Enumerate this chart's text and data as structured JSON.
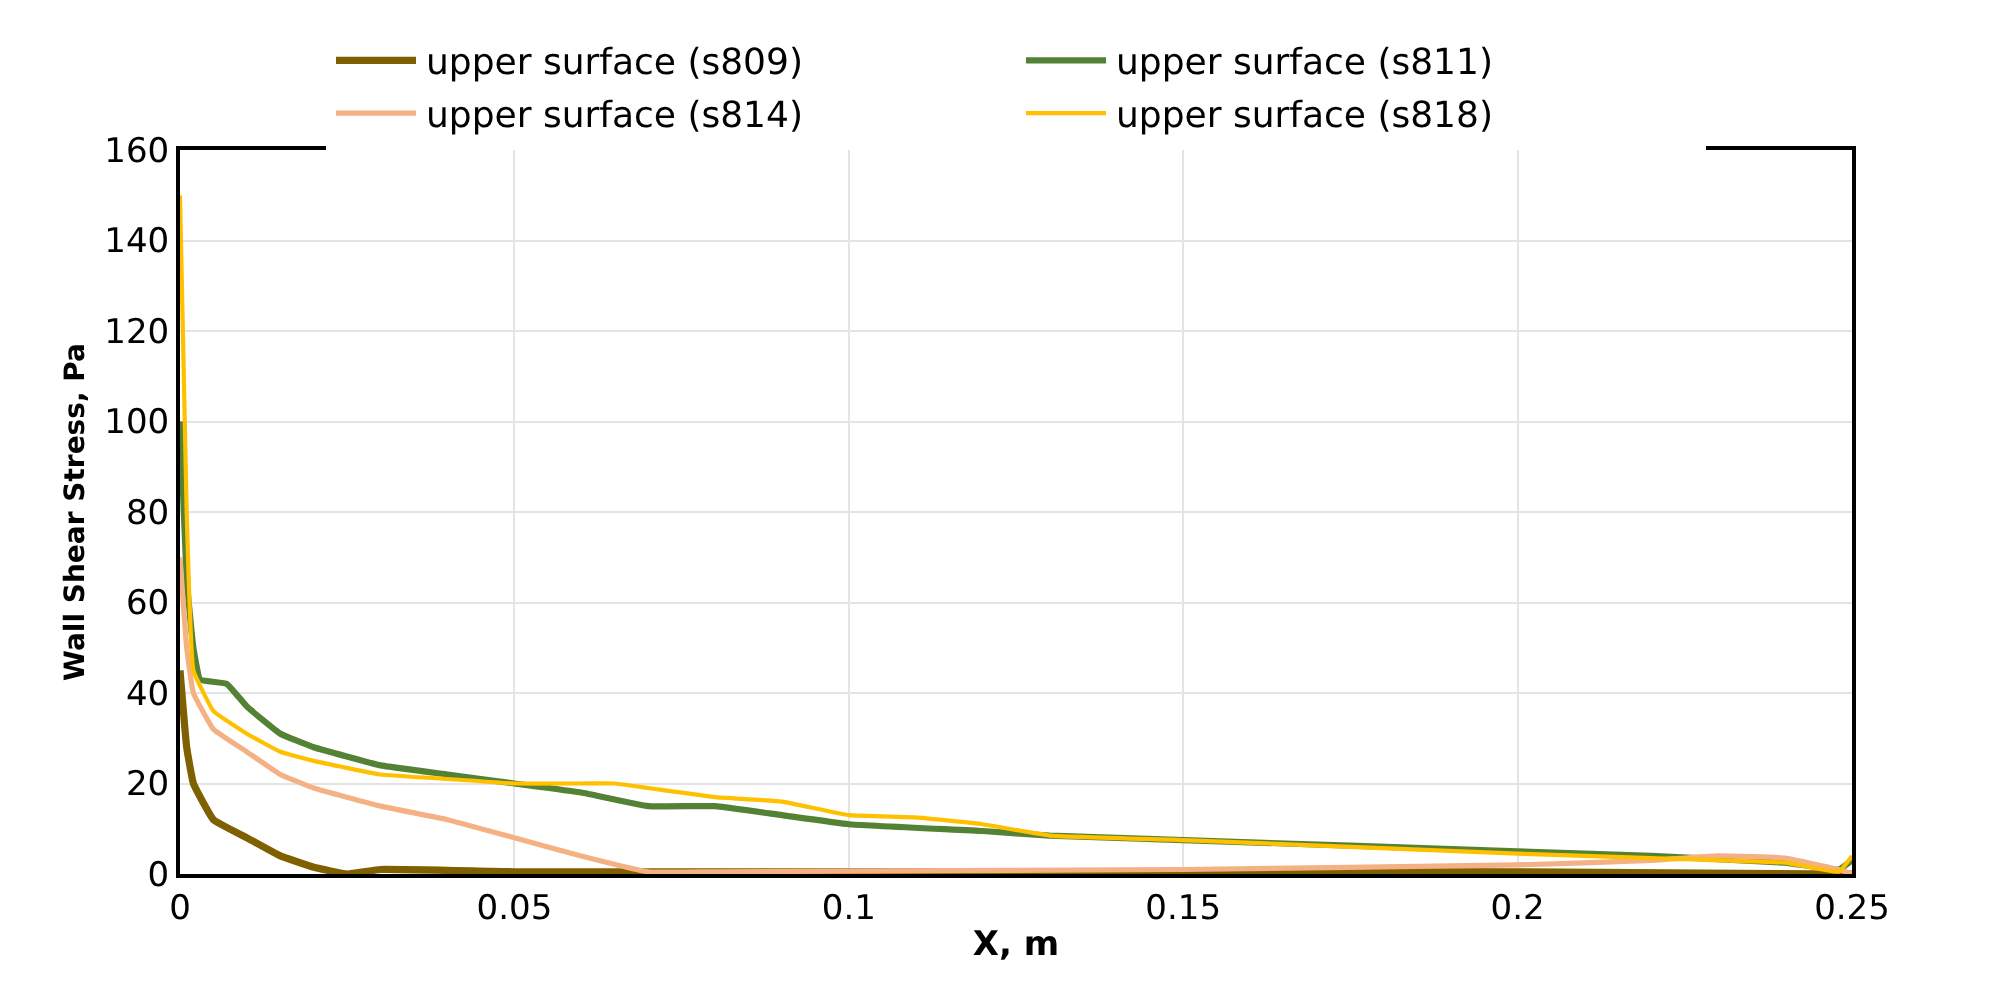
{
  "chart_data": {
    "type": "line",
    "xlabel": "X, m",
    "ylabel": "Wall Shear Stress, Pa",
    "xlim": [
      0,
      0.25
    ],
    "xticks": [
      0,
      0.05,
      0.1,
      0.15,
      0.2,
      0.25
    ],
    "ylim": [
      0,
      160
    ],
    "yticks": [
      0,
      20,
      40,
      60,
      80,
      100,
      120,
      140,
      160
    ],
    "grid": true,
    "legend": "top",
    "marker": "none",
    "line_style": "solid",
    "series": [
      {
        "name": "upper surface (s809)",
        "color": "#7f6000",
        "x": [
          0,
          0.001,
          0.002,
          0.005,
          0.01,
          0.015,
          0.02,
          0.025,
          0.03,
          0.05,
          0.1,
          0.15,
          0.2,
          0.25
        ],
        "values": [
          45,
          28,
          20,
          12,
          8,
          4,
          1.5,
          0,
          1,
          0.5,
          0.5,
          0.5,
          0.5,
          0
        ]
      },
      {
        "name": "upper surface (s811)",
        "color": "#548235",
        "x": [
          0,
          0.001,
          0.002,
          0.003,
          0.007,
          0.01,
          0.015,
          0.02,
          0.03,
          0.04,
          0.05,
          0.06,
          0.07,
          0.08,
          0.09,
          0.1,
          0.12,
          0.13,
          0.15,
          0.2,
          0.22,
          0.24,
          0.248,
          0.25
        ],
        "values": [
          100,
          65,
          50,
          43,
          42,
          37,
          31,
          28,
          24,
          22,
          20,
          18,
          15,
          15,
          13,
          11,
          9.5,
          8.5,
          7.5,
          5,
          4,
          2.5,
          1,
          3
        ]
      },
      {
        "name": "upper surface (s814)",
        "color": "#f4b183",
        "x": [
          0,
          0.001,
          0.002,
          0.005,
          0.01,
          0.015,
          0.02,
          0.03,
          0.04,
          0.05,
          0.06,
          0.07,
          0.08,
          0.15,
          0.2,
          0.22,
          0.23,
          0.24,
          0.248,
          0.25
        ],
        "values": [
          70,
          50,
          40,
          32,
          27,
          22,
          19,
          15,
          12,
          8,
          4,
          0.5,
          0.5,
          1,
          2,
          3,
          4,
          3.5,
          1,
          0
        ]
      },
      {
        "name": "upper surface (s818)",
        "color": "#ffc000",
        "x": [
          0,
          0.001,
          0.002,
          0.005,
          0.01,
          0.015,
          0.02,
          0.03,
          0.04,
          0.05,
          0.06,
          0.065,
          0.07,
          0.08,
          0.09,
          0.1,
          0.11,
          0.12,
          0.13,
          0.15,
          0.2,
          0.22,
          0.24,
          0.248,
          0.25
        ],
        "values": [
          150,
          80,
          45,
          36,
          31,
          27,
          25,
          22,
          21,
          20,
          20,
          20,
          19,
          17,
          16,
          13,
          12.5,
          11,
          8.5,
          7.5,
          4.5,
          3.5,
          2.5,
          0.5,
          4
        ]
      }
    ]
  }
}
